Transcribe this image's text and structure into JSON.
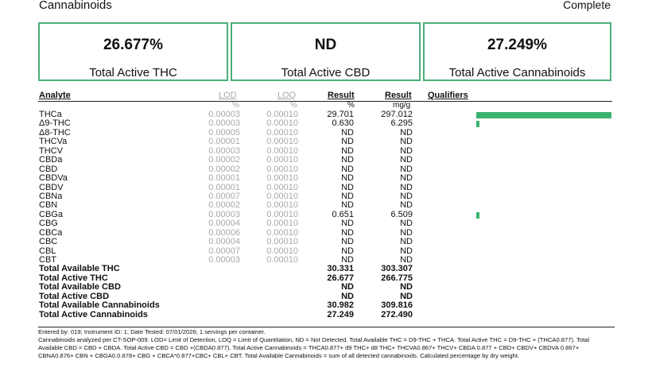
{
  "header": {
    "title": "Cannabinoids",
    "status": "Complete"
  },
  "summary": [
    {
      "value": "26.677%",
      "label": "Total Active THC"
    },
    {
      "value": "ND",
      "label": "Total Active CBD"
    },
    {
      "value": "27.249%",
      "label": "Total Active Cannabinoids"
    }
  ],
  "table": {
    "headers": {
      "analyte": "Analyte",
      "lod": "LOD",
      "loq": "LOQ",
      "result_pct": "Result",
      "result_mg": "Result",
      "qualifiers": "Qualifiers"
    },
    "units": {
      "lod": "%",
      "loq": "%",
      "result_pct": "%",
      "result_mg": "mg/g"
    },
    "rows": [
      {
        "analyte": "THCa",
        "lod": "0.00003",
        "loq": "0.00010",
        "pct": "29.701",
        "mg": "297.012",
        "bar": 1.0
      },
      {
        "analyte": "Δ9-THC",
        "lod": "0.00003",
        "loq": "0.00010",
        "pct": "0.630",
        "mg": "6.295",
        "bar": 0.021
      },
      {
        "analyte": "Δ8-THC",
        "lod": "0.00005",
        "loq": "0.00010",
        "pct": "ND",
        "mg": "ND",
        "bar": 0
      },
      {
        "analyte": "THCVa",
        "lod": "0.00001",
        "loq": "0.00010",
        "pct": "ND",
        "mg": "ND",
        "bar": 0
      },
      {
        "analyte": "THCV",
        "lod": "0.00003",
        "loq": "0.00010",
        "pct": "ND",
        "mg": "ND",
        "bar": 0
      },
      {
        "analyte": "CBDa",
        "lod": "0.00002",
        "loq": "0.00010",
        "pct": "ND",
        "mg": "ND",
        "bar": 0
      },
      {
        "analyte": "CBD",
        "lod": "0.00002",
        "loq": "0.00010",
        "pct": "ND",
        "mg": "ND",
        "bar": 0
      },
      {
        "analyte": "CBDVa",
        "lod": "0.00001",
        "loq": "0.00010",
        "pct": "ND",
        "mg": "ND",
        "bar": 0
      },
      {
        "analyte": "CBDV",
        "lod": "0.00001",
        "loq": "0.00010",
        "pct": "ND",
        "mg": "ND",
        "bar": 0
      },
      {
        "analyte": "CBNa",
        "lod": "0.00007",
        "loq": "0.00010",
        "pct": "ND",
        "mg": "ND",
        "bar": 0
      },
      {
        "analyte": "CBN",
        "lod": "0.00002",
        "loq": "0.00010",
        "pct": "ND",
        "mg": "ND",
        "bar": 0
      },
      {
        "analyte": "CBGa",
        "lod": "0.00003",
        "loq": "0.00010",
        "pct": "0.651",
        "mg": "6.509",
        "bar": 0.022
      },
      {
        "analyte": "CBG",
        "lod": "0.00004",
        "loq": "0.00010",
        "pct": "ND",
        "mg": "ND",
        "bar": 0
      },
      {
        "analyte": "CBCa",
        "lod": "0.00006",
        "loq": "0.00010",
        "pct": "ND",
        "mg": "ND",
        "bar": 0
      },
      {
        "analyte": "CBC",
        "lod": "0.00004",
        "loq": "0.00010",
        "pct": "ND",
        "mg": "ND",
        "bar": 0
      },
      {
        "analyte": "CBL",
        "lod": "0.00007",
        "loq": "0.00010",
        "pct": "ND",
        "mg": "ND",
        "bar": 0
      },
      {
        "analyte": "CBT",
        "lod": "0.00003",
        "loq": "0.00010",
        "pct": "ND",
        "mg": "ND",
        "bar": 0
      }
    ],
    "totals": [
      {
        "analyte": "Total Available THC",
        "pct": "30.331",
        "mg": "303.307"
      },
      {
        "analyte": "Total Active THC",
        "pct": "26.677",
        "mg": "266.775"
      },
      {
        "analyte": "Total Available CBD",
        "pct": "ND",
        "mg": "ND"
      },
      {
        "analyte": "Total Active CBD",
        "pct": "ND",
        "mg": "ND"
      },
      {
        "analyte": "Total Available Cannabinoids",
        "pct": "30.982",
        "mg": "309.816"
      },
      {
        "analyte": "Total Active Cannabinoids",
        "pct": "27.249",
        "mg": "272.490"
      }
    ]
  },
  "footer": {
    "line1": "Entered by: 019; Instrument ID: 1; Date Tested: 07/01/2026; 1 servings per container.",
    "line2": "Cannabinoids analyzed per CT-SOP-009. LOD= Limit of Detection, LOQ = Limit of Quantitation, ND = Not Detected. Total Available THC = D9-THC + THCA. Total Active THC = D9-THC + (THCA0.877). Total Available CBD = CBD + CBDA. Total Active CBD = CBD +(CBDA0.877). Total Active Cannabinoids = THCA0.877+ d9 THC+ d8 THC+ THCVA0.867+ THCV+ CBDA 0.877 + CBD+ CBDV+ CBDVA 0.867+ CBNA0.876+ CBN + CBGA0.0.878+ CBG + CBCA*0.877+CBC+ CBL+ CBT. Total Available Cannabinoids = sum of all detected cannabinoids. Calculated percentage by dry weight."
  },
  "colors": {
    "accent": "#3cb371",
    "border": "#4caf7a"
  }
}
